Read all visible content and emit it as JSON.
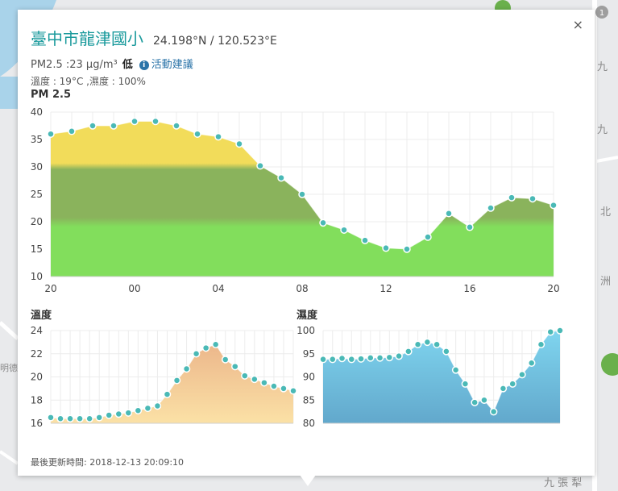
{
  "map": {
    "labels": [
      "九",
      "九",
      "北",
      "洲",
      "九 張 犁",
      "明德"
    ],
    "badge_count": "1"
  },
  "popup": {
    "close_label": "×",
    "station_name": "臺中市龍津國小",
    "coordinates": "24.198°N / 120.523°E",
    "pm25_text": "PM2.5 :23 μg/m³",
    "level": "低",
    "info_icon_glyph": "i",
    "advice_label": "活動建議",
    "weather_text": "溫度 : 19°C ,濕度 : 100%",
    "updated_label": "最後更新時間:",
    "updated_time": "2018-12-13 20:09:10"
  },
  "chart_data": [
    {
      "type": "area",
      "title": "PM 2.5",
      "x_tick_labels": [
        "20",
        "00",
        "04",
        "08",
        "12",
        "16",
        "20"
      ],
      "ylim": [
        10,
        40
      ],
      "y_ticks": [
        10,
        15,
        20,
        25,
        30,
        35,
        40
      ],
      "values": [
        36,
        36.5,
        37.5,
        37.5,
        38.3,
        38.3,
        37.5,
        36,
        35.5,
        34.2,
        30.2,
        28,
        25,
        19.8,
        18.5,
        16.6,
        15.2,
        15,
        17.2,
        21.5,
        19,
        22.5,
        24.4,
        24.2,
        23
      ],
      "colors": {
        "high": "#f2dc5a",
        "mid": "#8ab35c",
        "low": "#82de5c",
        "point": "#4ab9b6"
      },
      "grid": true
    },
    {
      "type": "area",
      "title": "溫度",
      "ylim": [
        16,
        24
      ],
      "y_ticks": [
        16,
        18,
        20,
        22,
        24
      ],
      "values": [
        16.5,
        16.4,
        16.4,
        16.4,
        16.4,
        16.5,
        16.7,
        16.8,
        16.9,
        17.1,
        17.3,
        17.5,
        18.5,
        19.7,
        20.7,
        22,
        22.5,
        22.8,
        21.5,
        20.9,
        20.1,
        19.8,
        19.5,
        19.2,
        19,
        18.8
      ],
      "colors": {
        "top": "#ecb78b",
        "bottom": "#fbe1a6",
        "point": "#4ab9b6"
      },
      "grid": true
    },
    {
      "type": "area",
      "title": "濕度",
      "ylim": [
        80,
        100
      ],
      "y_ticks": [
        80,
        85,
        90,
        95,
        100
      ],
      "values": [
        93.8,
        93.8,
        94,
        93.8,
        93.9,
        94.1,
        94.1,
        94.2,
        94.5,
        95.5,
        97,
        97.5,
        97,
        95.5,
        91.5,
        88.5,
        84.5,
        85,
        82.5,
        87.5,
        88.5,
        90.5,
        93,
        97,
        99.7,
        100
      ],
      "colors": {
        "top": "#7fd5ef",
        "bottom": "#62a8cc",
        "point": "#4ab9b6"
      },
      "grid": true
    }
  ]
}
